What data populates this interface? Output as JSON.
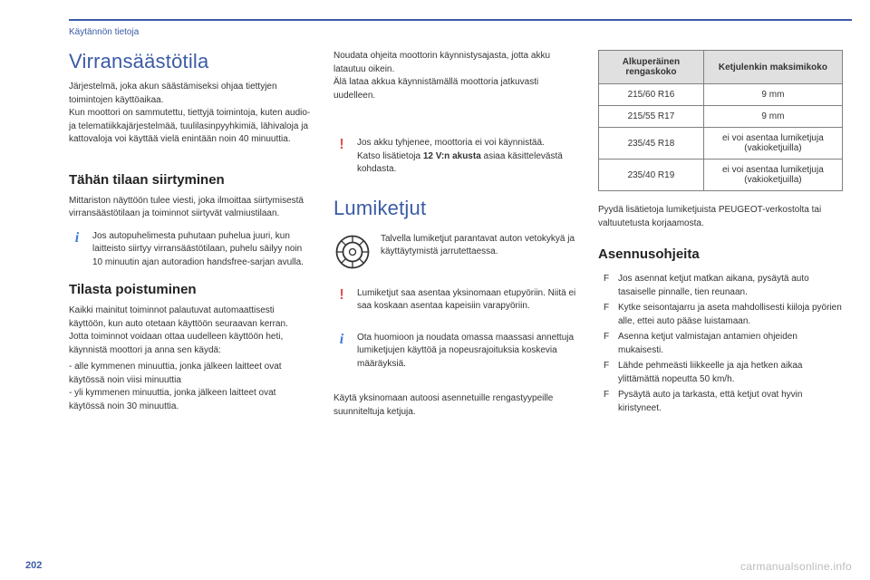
{
  "breadcrumb": "Käytännön tietoja",
  "page_number": "202",
  "watermark": "carmanualsonline.info",
  "colors": {
    "accent": "#3b5ba5",
    "info_icon": "#3b7bd4",
    "warn_icon": "#d9534f",
    "table_header_bg": "#e0e0e0",
    "table_border": "#808080",
    "text": "#333333"
  },
  "typography": {
    "h1_fontsize": 22,
    "h2_fontsize": 15,
    "body_fontsize": 10
  },
  "col1": {
    "h1": "Virransäästötila",
    "p1": "Järjestelmä, joka akun säästämiseksi ohjaa tiettyjen toimintojen käyttöaikaa.\nKun moottori on sammutettu, tiettyjä toimintoja, kuten audio- ja telematiikkajärjestelmää, tuulilasinpyyhkimiä, lähivaloja ja kattovaloja voi käyttää vielä enintään noin 40 minuuttia.",
    "h2a": "Tähän tilaan siirtyminen",
    "p2": "Mittariston näyttöön tulee viesti, joka ilmoittaa siirtymisestä virransäästötilaan ja toiminnot siirtyvät valmiustilaan.",
    "info1": "Jos autopuhelimesta puhutaan puhelua juuri, kun laitteisto siirtyy virransäästötilaan, puhelu säilyy noin 10 minuutin ajan autoradion handsfree-sarjan avulla.",
    "h2b": "Tilasta poistuminen",
    "p3": "Kaikki mainitut toiminnot palautuvat automaattisesti käyttöön, kun auto otetaan käyttöön seuraavan kerran.\nJotta toiminnot voidaan ottaa uudelleen käyttöön heti, käynnistä moottori ja anna sen käydä:",
    "dash": [
      "alle kymmenen minuuttia, jonka jälkeen laitteet ovat käytössä noin viisi minuuttia",
      "yli kymmenen minuuttia, jonka jälkeen laitteet ovat käytössä noin 30 minuuttia."
    ]
  },
  "col2": {
    "p1": "Noudata ohjeita moottorin käynnistysajasta, jotta akku latautuu oikein.\nÄlä lataa akkua käynnistämällä moottoria jatkuvasti uudelleen.",
    "warn1_a": "Jos akku tyhjenee, moottoria ei voi käynnistää.",
    "warn1_b_pre": "Katso lisätietoja ",
    "warn1_b_bold": "12 V:n akusta",
    "warn1_b_post": " asiaa käsittelevästä kohdasta.",
    "h1": "Lumiketjut",
    "chain_text": "Talvella lumiketjut parantavat auton vetokykyä ja käyttäytymistä jarrutettaessa.",
    "warn2": "Lumiketjut saa asentaa yksinomaan etupyöriin. Niitä ei saa koskaan asentaa kapeisiin varapyöriin.",
    "info2": "Ota huomioon ja noudata omassa maassasi annettuja lumiketjujen käyttöä ja nopeusrajoituksia koskevia määräyksiä.",
    "p2": "Käytä yksinomaan autoosi asennetuille rengastyypeille suunniteltuja ketjuja."
  },
  "col3": {
    "table": {
      "headers": [
        "Alkuperäinen rengaskoko",
        "Ketjulenkin maksimikoko"
      ],
      "rows": [
        [
          "215/60 R16",
          "9 mm"
        ],
        [
          "215/55 R17",
          "9 mm"
        ],
        [
          "235/45 R18",
          "ei voi asentaa lumiketjuja (vakioketjuilla)"
        ],
        [
          "235/40 R19",
          "ei voi asentaa lumiketjuja (vakioketjuilla)"
        ]
      ]
    },
    "p1": "Pyydä lisätietoja lumiketjuista PEUGEOT-verkostolta tai valtuutetusta korjaamosta.",
    "h2": "Asennusohjeita",
    "bullets": [
      "Jos asennat ketjut matkan aikana, pysäytä auto tasaiselle pinnalle, tien reunaan.",
      "Kytke seisontajarru ja aseta mahdollisesti kiiloja pyörien alle, ettei auto pääse luistamaan.",
      "Asenna ketjut valmistajan antamien ohjeiden mukaisesti.",
      "Lähde pehmeästi liikkeelle ja aja hetken aikaa ylittämättä nopeutta 50 km/h.",
      "Pysäytä auto ja tarkasta, että ketjut ovat hyvin kiristyneet."
    ],
    "bullet_marker": "F"
  }
}
